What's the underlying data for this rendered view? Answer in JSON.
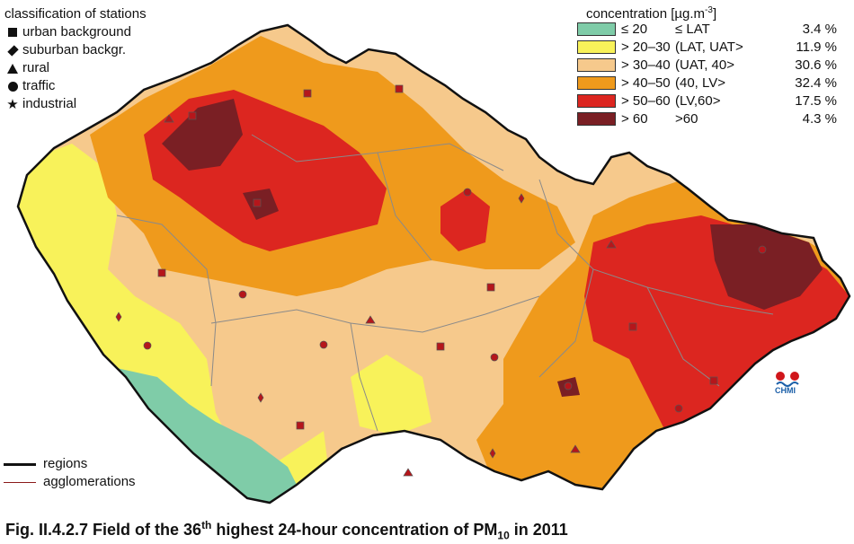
{
  "stations_legend": {
    "title": "classification of stations",
    "items": [
      {
        "symbol": "square",
        "label": "urban background"
      },
      {
        "symbol": "diamond",
        "label": "suburban backgr."
      },
      {
        "symbol": "triangle",
        "label": "rural"
      },
      {
        "symbol": "circle",
        "label": "traffic"
      },
      {
        "symbol": "star",
        "label": "industrial"
      }
    ]
  },
  "concentration_legend": {
    "title": "concentration [µg.m",
    "title_sup": "-3",
    "title_end": "]",
    "classes": [
      {
        "range": "≤ 20",
        "label": "≤ LAT",
        "pct": "3.4 %",
        "color": "#7fcca8"
      },
      {
        "range": "> 20–30",
        "label": "(LAT, UAT>",
        "pct": "11.9 %",
        "color": "#f8f25a"
      },
      {
        "range": "> 30–40",
        "label": "(UAT, 40>",
        "pct": "30.6 %",
        "color": "#f6c98c"
      },
      {
        "range": "> 40–50",
        "label": "(40, LV>",
        "pct": "32.4 %",
        "color": "#ef9a1c"
      },
      {
        "range": "> 50–60",
        "label": "(LV,60>",
        "pct": "17.5 %",
        "color": "#dc2620"
      },
      {
        "range": "> 60",
        "label": ">60",
        "pct": "4.3 %",
        "color": "#7a1f24"
      }
    ]
  },
  "line_legend": {
    "regions": "regions",
    "agglomerations": "agglomerations"
  },
  "logo": {
    "text": "CHMI"
  },
  "caption": {
    "prefix": "Fig. II.4.2.7  Field of the 36",
    "sup": "th",
    "middle": " highest 24-hour concentration of PM",
    "sub": "10",
    "suffix": " in 2011"
  }
}
